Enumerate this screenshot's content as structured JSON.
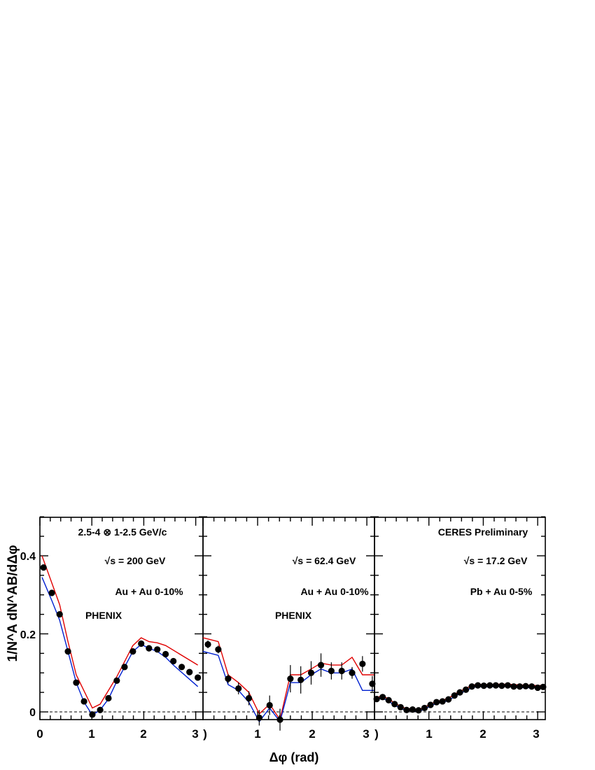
{
  "chart_data": {
    "type": "scatter",
    "xlabel": "Δφ (rad)",
    "ylabel": "1/N^A dN^AB/dΔφ",
    "ylim": [
      -0.02,
      0.5
    ],
    "grid": false,
    "y_ticks": [
      "0.4",
      "0.2",
      "0"
    ],
    "panels": [
      {
        "id": "left",
        "xlim": [
          0.0,
          3.14
        ],
        "x_ticks": [
          "0",
          "1",
          "2",
          "3"
        ],
        "labels": [
          "2.5-4 ⊗ 1-2.5 GeV/c",
          "√s = 200 GeV",
          "Au + Au 0-10%",
          "PHENIX"
        ],
        "series": [
          {
            "kind": "points",
            "x": [
              0.07,
              0.23,
              0.38,
              0.54,
              0.7,
              0.85,
              1.01,
              1.16,
              1.32,
              1.48,
              1.63,
              1.79,
              1.95,
              2.1,
              2.26,
              2.42,
              2.57,
              2.73,
              2.88,
              3.04
            ],
            "y": [
              0.37,
              0.305,
              0.25,
              0.155,
              0.075,
              0.027,
              -0.007,
              0.005,
              0.035,
              0.08,
              0.115,
              0.155,
              0.175,
              0.163,
              0.16,
              0.148,
              0.13,
              0.115,
              0.102,
              0.088
            ]
          },
          {
            "kind": "band-upper",
            "color": "#e00000",
            "x": [
              0.04,
              0.23,
              0.38,
              0.54,
              0.7,
              1.01,
              1.16,
              1.48,
              1.79,
              1.95,
              2.1,
              2.26,
              2.42,
              3.04
            ],
            "y": [
              0.4,
              0.33,
              0.275,
              0.18,
              0.095,
              0.01,
              0.02,
              0.09,
              0.17,
              0.19,
              0.18,
              0.177,
              0.17,
              0.12
            ]
          },
          {
            "kind": "band-lower",
            "color": "#0020d0",
            "x": [
              0.04,
              0.23,
              0.38,
              0.54,
              0.7,
              0.85,
              1.01,
              1.16,
              1.32,
              1.48,
              1.63,
              1.79,
              1.95,
              2.1,
              2.26,
              2.42,
              2.57,
              3.04
            ],
            "y": [
              0.345,
              0.285,
              0.235,
              0.155,
              0.075,
              0.025,
              -0.008,
              0.005,
              0.033,
              0.078,
              0.115,
              0.155,
              0.173,
              0.163,
              0.155,
              0.14,
              0.12,
              0.065
            ]
          }
        ]
      },
      {
        "id": "middle",
        "xlim": [
          0.0,
          3.14
        ],
        "x_ticks": [
          ")",
          "1",
          "2",
          "3"
        ],
        "labels": [
          "√s = 62.4 GeV",
          "Au + Au 0-10%",
          "PHENIX"
        ],
        "series": [
          {
            "kind": "points",
            "x": [
              0.09,
              0.28,
              0.46,
              0.65,
              0.84,
              1.03,
              1.22,
              1.41,
              1.6,
              1.79,
              1.98,
              2.16,
              2.35,
              2.54,
              2.73,
              2.92,
              3.1
            ],
            "y": [
              0.173,
              0.16,
              0.085,
              0.06,
              0.035,
              -0.015,
              0.017,
              -0.02,
              0.085,
              0.082,
              0.1,
              0.12,
              0.105,
              0.105,
              0.1,
              0.123,
              0.072
            ],
            "err": [
              0.01,
              0.01,
              0.012,
              0.015,
              0.018,
              0.02,
              0.025,
              0.028,
              0.035,
              0.035,
              0.03,
              0.03,
              0.022,
              0.022,
              0.015,
              0.02,
              0.02
            ]
          },
          {
            "kind": "band-upper",
            "color": "#e00000",
            "x": [
              0.0,
              0.28,
              0.46,
              0.65,
              0.84,
              1.03,
              1.22,
              1.41,
              1.6,
              1.79,
              1.98,
              2.16,
              2.35,
              2.54,
              2.73,
              2.92,
              3.14
            ],
            "y": [
              0.19,
              0.18,
              0.095,
              0.075,
              0.05,
              -0.005,
              0.02,
              -0.02,
              0.095,
              0.095,
              0.11,
              0.125,
              0.12,
              0.12,
              0.14,
              0.095,
              0.095
            ]
          },
          {
            "kind": "band-lower",
            "color": "#0020d0",
            "x": [
              0.0,
              0.28,
              0.46,
              0.65,
              0.84,
              1.03,
              1.22,
              1.41,
              1.6,
              1.79,
              1.98,
              2.16,
              2.35,
              2.54,
              2.73,
              2.92,
              3.14
            ],
            "y": [
              0.155,
              0.145,
              0.07,
              0.055,
              0.025,
              -0.025,
              0.01,
              -0.025,
              0.075,
              0.075,
              0.095,
              0.11,
              0.1,
              0.1,
              0.11,
              0.055,
              0.055
            ]
          }
        ]
      },
      {
        "id": "right",
        "xlim": [
          0.0,
          3.14
        ],
        "x_ticks": [
          ")",
          "1",
          "2",
          "3"
        ],
        "labels": [
          "CERES Preliminary",
          "√s = 17.2 GeV",
          "Pb + Au 0-5%"
        ],
        "series": [
          {
            "kind": "points",
            "x": [
              0.04,
              0.15,
              0.26,
              0.37,
              0.48,
              0.59,
              0.7,
              0.81,
              0.92,
              1.03,
              1.14,
              1.25,
              1.36,
              1.47,
              1.57,
              1.68,
              1.79,
              1.9,
              2.01,
              2.12,
              2.23,
              2.34,
              2.45,
              2.56,
              2.67,
              2.78,
              2.89,
              3.0,
              3.1
            ],
            "y": [
              0.033,
              0.038,
              0.03,
              0.02,
              0.012,
              0.005,
              0.006,
              0.004,
              0.01,
              0.018,
              0.025,
              0.027,
              0.032,
              0.042,
              0.05,
              0.057,
              0.065,
              0.068,
              0.067,
              0.068,
              0.068,
              0.067,
              0.068,
              0.065,
              0.065,
              0.066,
              0.065,
              0.062,
              0.064
            ]
          },
          {
            "kind": "band-upper",
            "color": "#e00000",
            "x": [
              0.0,
              0.15,
              0.26,
              0.37,
              0.48,
              0.59,
              0.7,
              0.81,
              0.92,
              1.03,
              1.14,
              1.25,
              1.36,
              1.47,
              1.57,
              1.68,
              1.79,
              1.9,
              2.01,
              2.23,
              2.45,
              2.67,
              2.89,
              3.14
            ],
            "y": [
              0.036,
              0.041,
              0.033,
              0.023,
              0.014,
              0.008,
              0.008,
              0.006,
              0.012,
              0.02,
              0.027,
              0.03,
              0.035,
              0.045,
              0.053,
              0.06,
              0.068,
              0.071,
              0.07,
              0.071,
              0.071,
              0.069,
              0.068,
              0.067
            ]
          },
          {
            "kind": "band-lower",
            "color": "#0020d0",
            "x": [
              0.0,
              0.15,
              0.26,
              0.37,
              0.48,
              0.59,
              0.7,
              0.81,
              0.92,
              1.03,
              1.14,
              1.25,
              1.36,
              1.47,
              1.57,
              1.68,
              1.79,
              1.9,
              2.01,
              2.23,
              2.45,
              2.67,
              2.89,
              3.14
            ],
            "y": [
              0.031,
              0.035,
              0.027,
              0.017,
              0.009,
              0.003,
              0.003,
              0.001,
              0.007,
              0.015,
              0.022,
              0.024,
              0.029,
              0.039,
              0.047,
              0.054,
              0.062,
              0.065,
              0.064,
              0.065,
              0.065,
              0.062,
              0.062,
              0.061
            ]
          }
        ]
      }
    ]
  }
}
